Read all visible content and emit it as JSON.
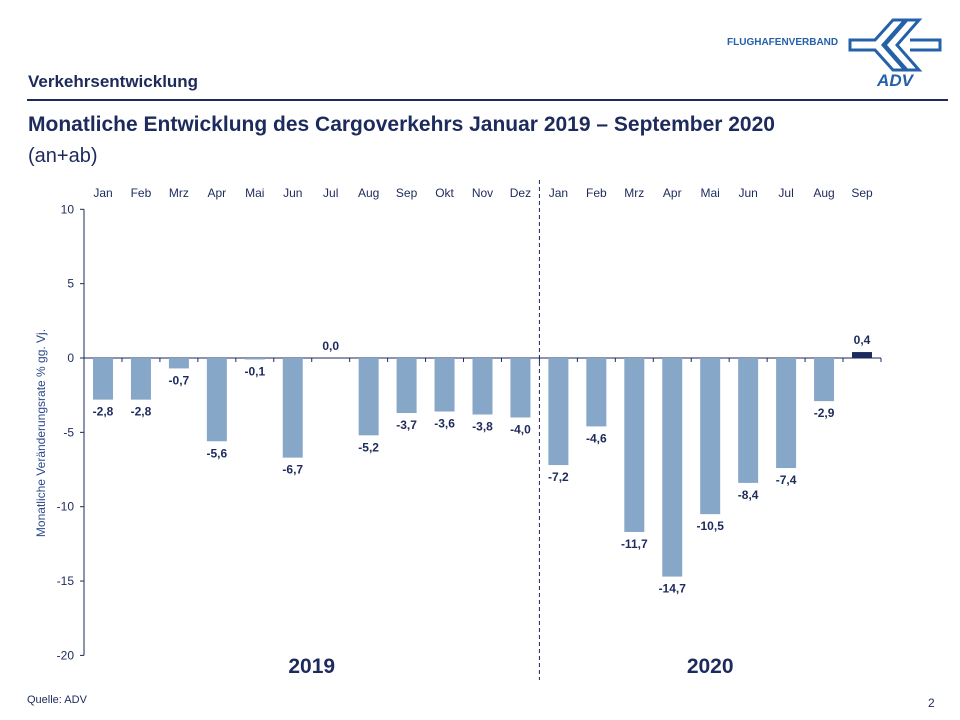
{
  "header": {
    "section": "Verkehrsentwicklung",
    "title": "Monatliche Entwicklung des Cargoverkehrs Januar 2019 – September 2020",
    "subtitle": "(an+ab)",
    "logo_text": "FLUGHAFENVERBAND",
    "logo_mark": "ADV"
  },
  "footer": {
    "source": "Quelle: ADV",
    "page": "2"
  },
  "colors": {
    "bar": "#87a7c9",
    "highlight_bar": "#1c2a5c",
    "text": "#1c2a5c"
  },
  "chart_data": {
    "type": "bar",
    "ylabel": "Monatliche Veränderungsrate % gg. Vj.",
    "ylim": [
      -20,
      10
    ],
    "yticks": [
      10,
      5,
      0,
      -5,
      -10,
      -15,
      -20
    ],
    "categories": [
      "Jan",
      "Feb",
      "Mrz",
      "Apr",
      "Mai",
      "Jun",
      "Jul",
      "Aug",
      "Sep",
      "Okt",
      "Nov",
      "Dez",
      "Jan",
      "Feb",
      "Mrz",
      "Apr",
      "Mai",
      "Jun",
      "Jul",
      "Aug",
      "Sep"
    ],
    "values": [
      -2.8,
      -2.8,
      -0.7,
      -5.6,
      -0.1,
      -6.7,
      0.0,
      -5.2,
      -3.7,
      -3.6,
      -3.8,
      -4.0,
      -7.2,
      -4.6,
      -11.7,
      -14.7,
      -10.5,
      -8.4,
      -7.4,
      -2.9,
      0.4
    ],
    "labels": [
      "-2,8",
      "-2,8",
      "-0,7",
      "-5,6",
      "-0,1",
      "-6,7",
      "0,0",
      "-5,2",
      "-3,7",
      "-3,6",
      "-3,8",
      "-4,0",
      "-7,2",
      "-4,6",
      "-11,7",
      "-14,7",
      "-10,5",
      "-8,4",
      "-7,4",
      "-2,9",
      "0,4"
    ],
    "groups": [
      {
        "label": "2019",
        "count": 12
      },
      {
        "label": "2020",
        "count": 9
      }
    ],
    "grid": false
  }
}
